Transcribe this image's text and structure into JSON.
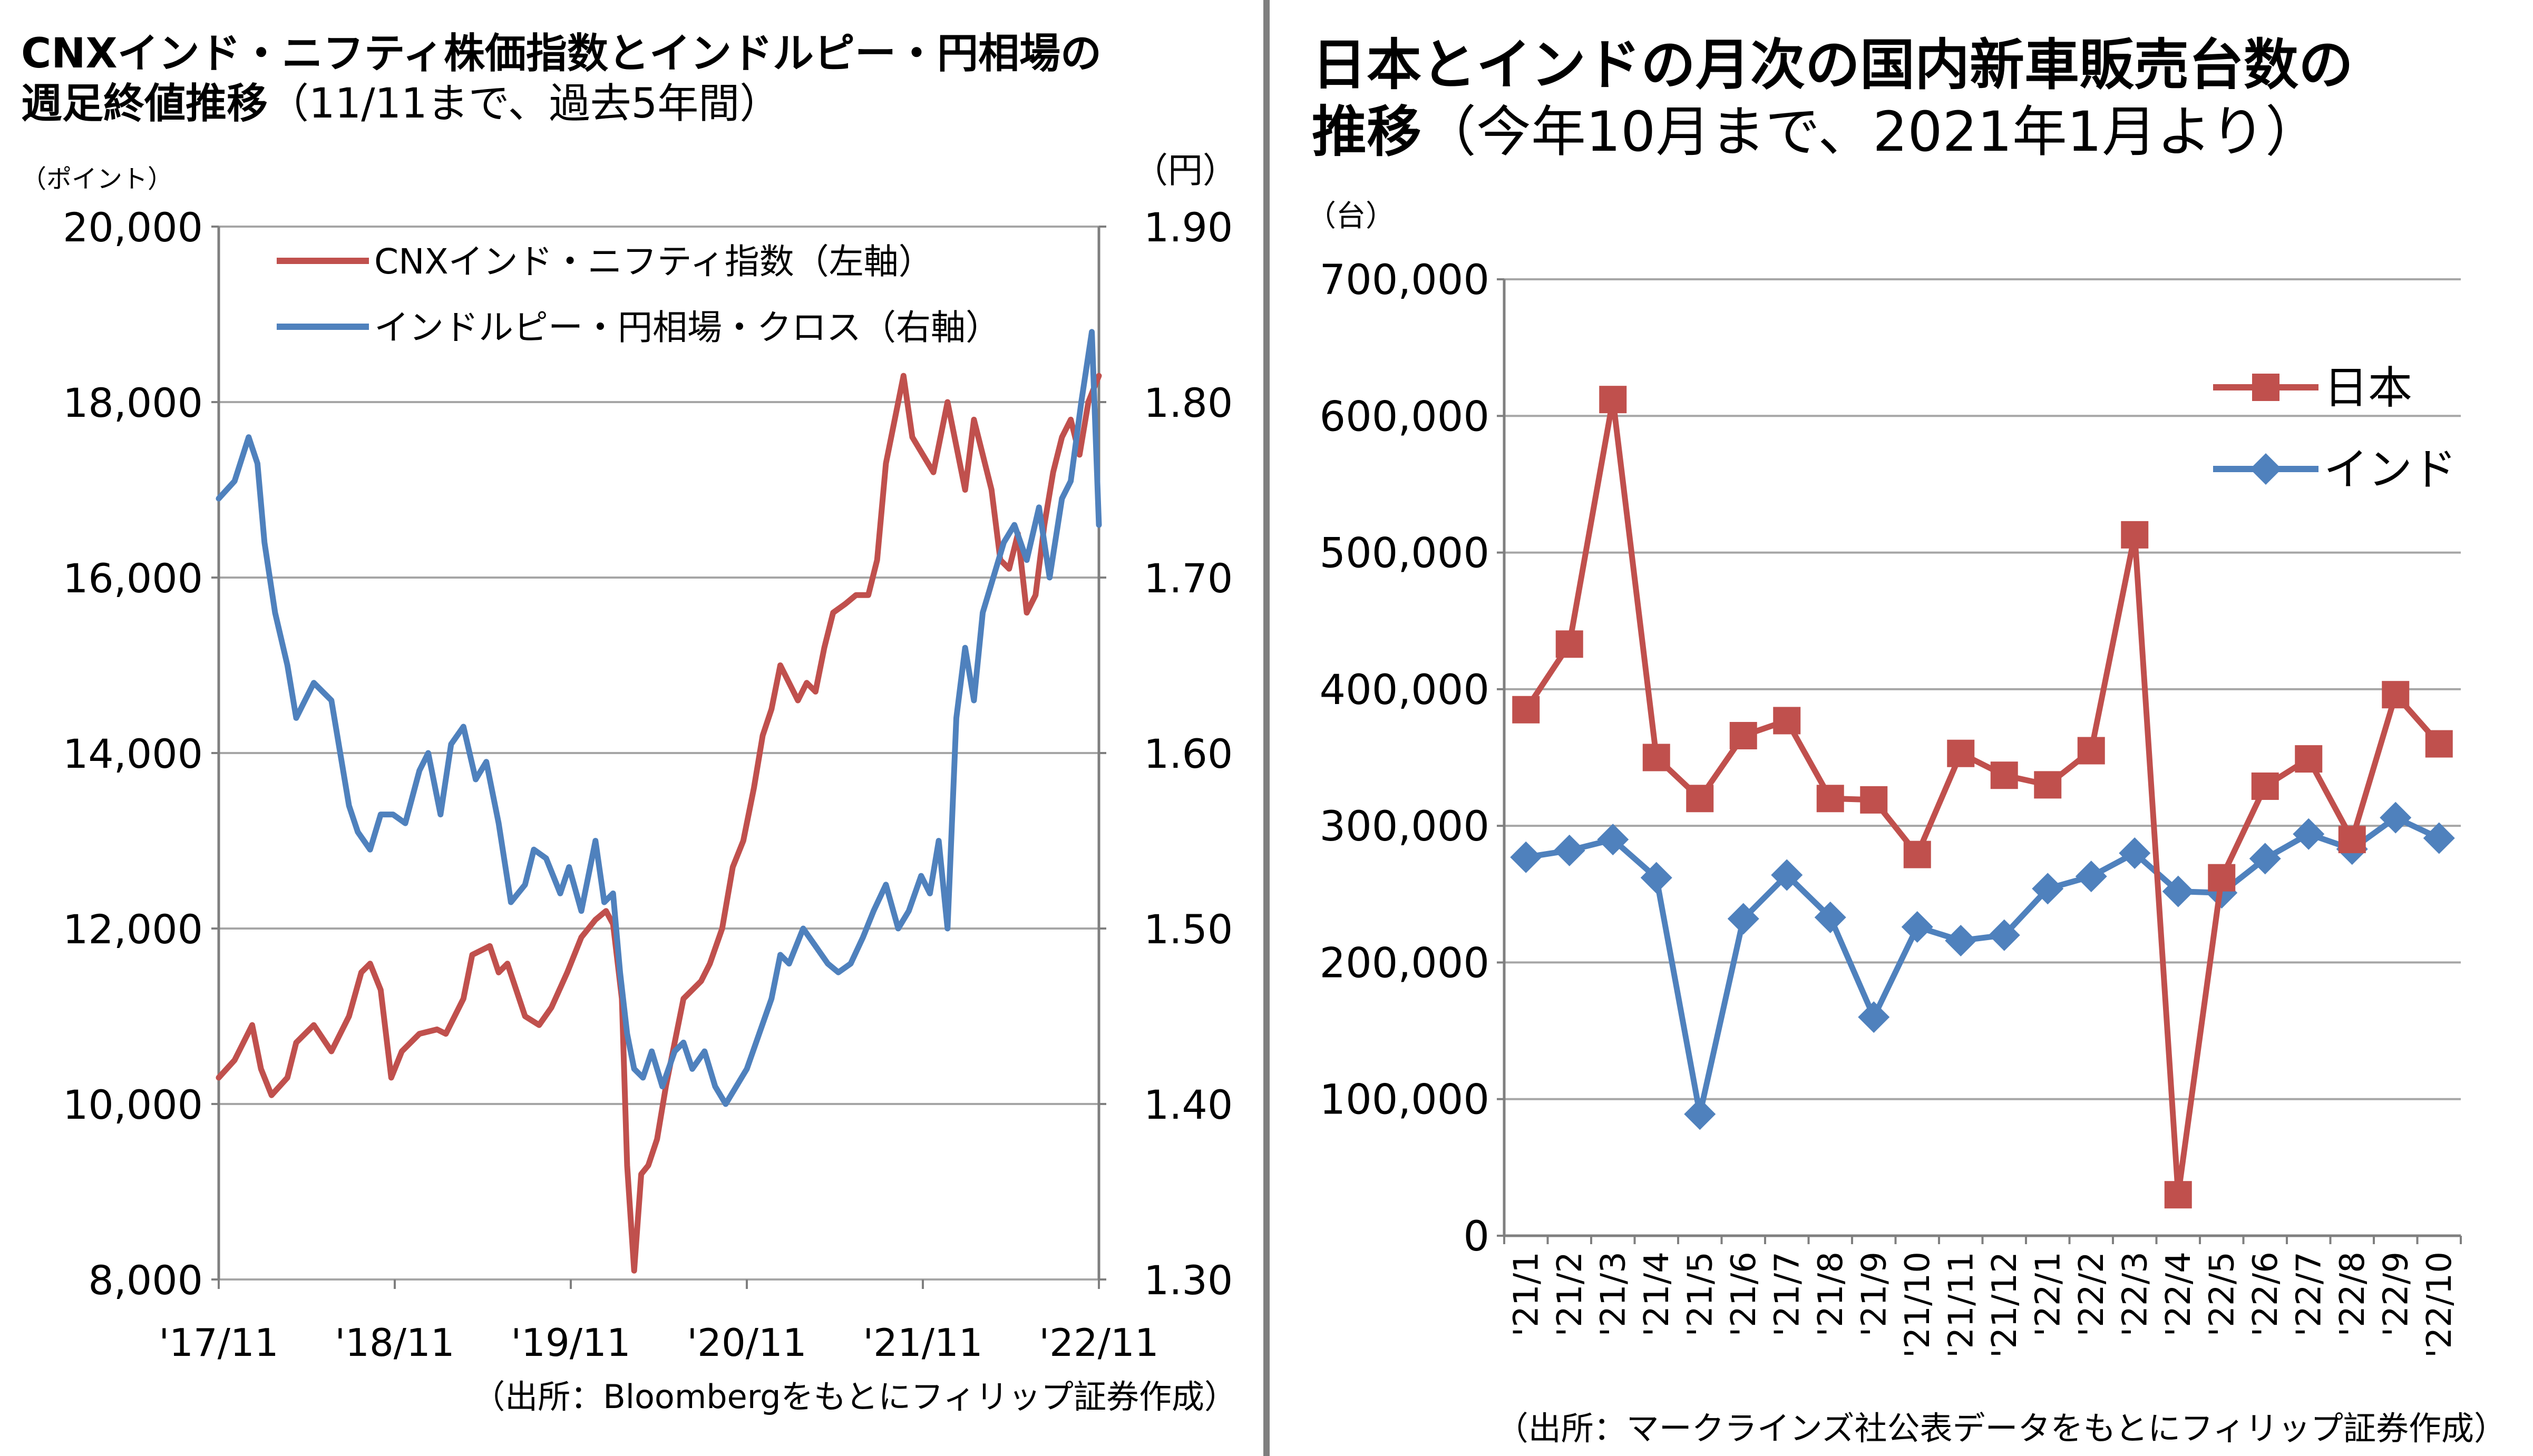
{
  "left_panel": {
    "title_line1": "CNXインド・ニフティ株価指数とインドルピー・円相場の",
    "title_line2": "週足終値推移",
    "title_note": "（11/11まで、過去5年間）",
    "unit_left": "（ポイント）",
    "unit_right": "（円）",
    "source": "（出所：Bloombergをもとにフィリップ証券作成）",
    "colors": {
      "nifty": "#c0504d",
      "rupee": "#4f81bd",
      "grid": "#a6a6a6"
    }
  },
  "right_panel": {
    "title_line1": "日本とインドの月次の国内新車販売台数の",
    "title_line2": "推移",
    "title_note": "（今年10月まで、2021年1月より）",
    "unit": "（台）",
    "source": "（出所：マークラインズ社公表データをもとにフィリップ証券作成）",
    "colors": {
      "japan": "#c0504d",
      "india": "#4f81bd",
      "grid": "#a6a6a6"
    }
  },
  "chart_data": [
    {
      "type": "line",
      "x_tick_labels": [
        "'17/11",
        "'18/11",
        "'19/11",
        "'20/11",
        "'21/11",
        "'22/11"
      ],
      "y_left": {
        "ylim": [
          8000,
          20000
        ],
        "ticks": [
          "8,000",
          "10,000",
          "12,000",
          "14,000",
          "16,000",
          "18,000",
          "20,000"
        ]
      },
      "y_right": {
        "ylim": [
          1.3,
          1.9
        ],
        "ticks": [
          "1.30",
          "1.40",
          "1.50",
          "1.60",
          "1.70",
          "1.80",
          "1.90"
        ]
      },
      "legend_position": "top-left",
      "grid": true,
      "series": [
        {
          "name": "CNXインド・ニフティ指数（左軸）",
          "axis": "left",
          "x": [
            2017.86,
            2017.95,
            2018.05,
            2018.1,
            2018.16,
            2018.25,
            2018.3,
            2018.4,
            2018.5,
            2018.6,
            2018.67,
            2018.72,
            2018.78,
            2018.84,
            2018.9,
            2019.0,
            2019.1,
            2019.15,
            2019.25,
            2019.3,
            2019.4,
            2019.45,
            2019.5,
            2019.6,
            2019.68,
            2019.75,
            2019.84,
            2019.92,
            2020.0,
            2020.06,
            2020.1,
            2020.15,
            2020.18,
            2020.22,
            2020.26,
            2020.3,
            2020.35,
            2020.4,
            2020.45,
            2020.5,
            2020.55,
            2020.6,
            2020.65,
            2020.72,
            2020.78,
            2020.84,
            2020.9,
            2020.95,
            2021.0,
            2021.05,
            2021.1,
            2021.15,
            2021.2,
            2021.25,
            2021.3,
            2021.35,
            2021.42,
            2021.48,
            2021.55,
            2021.6,
            2021.65,
            2021.7,
            2021.75,
            2021.8,
            2021.86,
            2021.92,
            2022.0,
            2022.05,
            2022.1,
            2022.15,
            2022.2,
            2022.25,
            2022.3,
            2022.35,
            2022.4,
            2022.45,
            2022.5,
            2022.55,
            2022.6,
            2022.65,
            2022.7,
            2022.75,
            2022.8,
            2022.86
          ],
          "values": [
            10300,
            10500,
            10900,
            10400,
            10100,
            10300,
            10700,
            10900,
            10600,
            11000,
            11500,
            11600,
            11300,
            10300,
            10600,
            10800,
            10850,
            10800,
            11200,
            11700,
            11800,
            11500,
            11600,
            11000,
            10900,
            11100,
            11500,
            11900,
            12100,
            12200,
            12050,
            11200,
            9300,
            8100,
            9200,
            9300,
            9600,
            10200,
            10700,
            11200,
            11300,
            11400,
            11600,
            12000,
            12700,
            13000,
            13600,
            14200,
            14500,
            15000,
            14800,
            14600,
            14800,
            14700,
            15200,
            15600,
            15700,
            15800,
            15800,
            16200,
            17300,
            17800,
            18300,
            17600,
            17400,
            17200,
            18000,
            17500,
            17000,
            17800,
            17400,
            17000,
            16200,
            16100,
            16500,
            15600,
            15800,
            16600,
            17200,
            17600,
            17800,
            17400,
            18000,
            18300
          ]
        },
        {
          "name": "インドルピー・円相場・クロス（右軸）",
          "axis": "right",
          "x": [
            2017.86,
            2017.95,
            2018.03,
            2018.08,
            2018.12,
            2018.18,
            2018.25,
            2018.3,
            2018.4,
            2018.5,
            2018.55,
            2018.6,
            2018.65,
            2018.72,
            2018.78,
            2018.85,
            2018.92,
            2019.0,
            2019.05,
            2019.12,
            2019.18,
            2019.25,
            2019.32,
            2019.38,
            2019.45,
            2019.52,
            2019.6,
            2019.65,
            2019.72,
            2019.8,
            2019.85,
            2019.92,
            2020.0,
            2020.05,
            2020.1,
            2020.14,
            2020.18,
            2020.22,
            2020.27,
            2020.32,
            2020.38,
            2020.45,
            2020.5,
            2020.55,
            2020.62,
            2020.68,
            2020.74,
            2020.8,
            2020.86,
            2020.93,
            2021.0,
            2021.05,
            2021.1,
            2021.18,
            2021.25,
            2021.32,
            2021.38,
            2021.45,
            2021.52,
            2021.58,
            2021.65,
            2021.72,
            2021.78,
            2021.85,
            2021.9,
            2021.95,
            2022.0,
            2022.05,
            2022.1,
            2022.15,
            2022.2,
            2022.26,
            2022.32,
            2022.38,
            2022.45,
            2022.52,
            2022.58,
            2022.65,
            2022.7,
            2022.76,
            2022.82,
            2022.86
          ],
          "values": [
            1.745,
            1.755,
            1.78,
            1.765,
            1.72,
            1.68,
            1.65,
            1.62,
            1.64,
            1.63,
            1.6,
            1.57,
            1.555,
            1.545,
            1.565,
            1.565,
            1.56,
            1.59,
            1.6,
            1.565,
            1.605,
            1.615,
            1.585,
            1.595,
            1.56,
            1.515,
            1.525,
            1.545,
            1.54,
            1.52,
            1.535,
            1.51,
            1.55,
            1.515,
            1.52,
            1.475,
            1.44,
            1.42,
            1.415,
            1.43,
            1.41,
            1.43,
            1.435,
            1.42,
            1.43,
            1.41,
            1.4,
            1.41,
            1.42,
            1.44,
            1.46,
            1.485,
            1.48,
            1.5,
            1.49,
            1.48,
            1.475,
            1.48,
            1.495,
            1.51,
            1.525,
            1.5,
            1.51,
            1.53,
            1.52,
            1.55,
            1.5,
            1.62,
            1.66,
            1.63,
            1.68,
            1.7,
            1.72,
            1.73,
            1.71,
            1.74,
            1.7,
            1.745,
            1.755,
            1.8,
            1.84,
            1.73
          ]
        }
      ]
    },
    {
      "type": "line",
      "unit": "（台）",
      "categories": [
        "'21/1",
        "'21/2",
        "'21/3",
        "'21/4",
        "'21/5",
        "'21/6",
        "'21/7",
        "'21/8",
        "'21/9",
        "'21/10",
        "'21/11",
        "'21/12",
        "'22/1",
        "'22/2",
        "'22/3",
        "'22/4",
        "'22/5",
        "'22/6",
        "'22/7",
        "'22/8",
        "'22/9",
        "'22/10"
      ],
      "ylim": [
        0,
        700000
      ],
      "y_ticks": [
        "0",
        "100,000",
        "200,000",
        "300,000",
        "400,000",
        "500,000",
        "600,000",
        "700,000"
      ],
      "legend_position": "top-right",
      "grid": true,
      "series": [
        {
          "name": "日本",
          "marker": "square",
          "values": [
            385000,
            433000,
            612000,
            350000,
            320000,
            366000,
            377000,
            320000,
            319000,
            279000,
            353000,
            337000,
            330000,
            355000,
            513000,
            30000,
            262000,
            329000,
            349000,
            290000,
            396000,
            360000
          ]
        },
        {
          "name": "インド",
          "marker": "diamond",
          "values": [
            277000,
            282000,
            290000,
            262000,
            89000,
            232000,
            264000,
            233000,
            160000,
            226000,
            216000,
            220000,
            254000,
            263000,
            280000,
            252000,
            251000,
            276000,
            294000,
            283000,
            306000,
            291000
          ]
        }
      ]
    }
  ]
}
